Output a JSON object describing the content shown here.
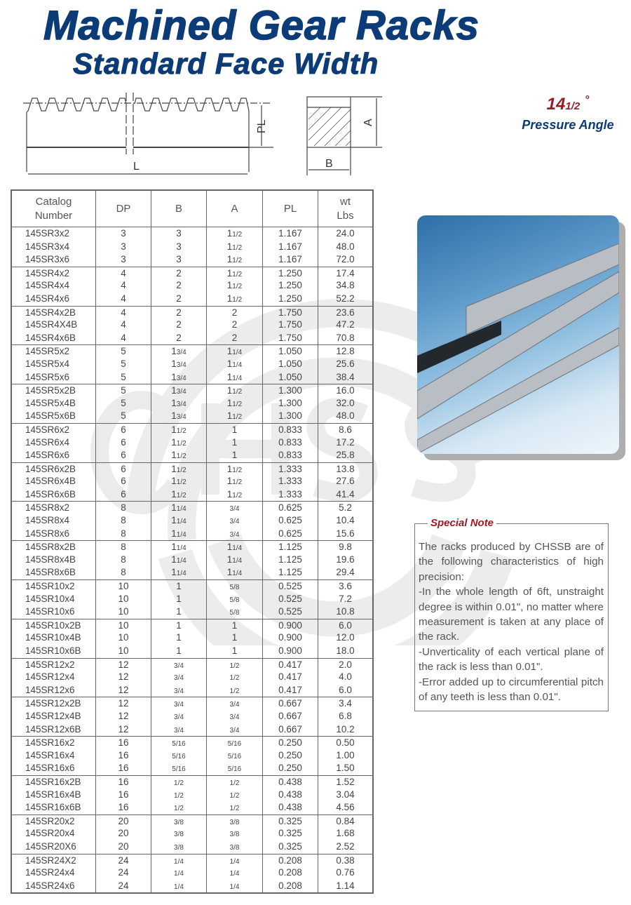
{
  "header": {
    "title": "Machined Gear Racks",
    "subtitle": "Standard Face Width"
  },
  "pressure_angle": {
    "whole": "14",
    "fraction": "1/2",
    "degree": "°",
    "label": "Pressure Angle"
  },
  "diagram": {
    "labels": {
      "length": "L",
      "pitch_line": "PL",
      "height": "A",
      "width": "B"
    }
  },
  "watermark": "CHSSB",
  "colors": {
    "title": "#0c3c78",
    "accent": "#9b1b24"
  },
  "table": {
    "headers": [
      [
        "Catalog",
        "Number"
      ],
      [
        "DP"
      ],
      [
        "B"
      ],
      [
        "A"
      ],
      [
        "PL"
      ],
      [
        "wt",
        "Lbs"
      ]
    ],
    "rows": [
      [
        "145SR3x2",
        "3",
        "3",
        "1 1/2",
        "1.167",
        "24.0"
      ],
      [
        "145SR3x4",
        "3",
        "3",
        "1 1/2",
        "1.167",
        "48.0"
      ],
      [
        "145SR3x6",
        "3",
        "3",
        "1 1/2",
        "1.167",
        "72.0"
      ],
      [
        "145SR4x2",
        "4",
        "2",
        "1 1/2",
        "1.250",
        "17.4"
      ],
      [
        "145SR4x4",
        "4",
        "2",
        "1 1/2",
        "1.250",
        "34.8"
      ],
      [
        "145SR4x6",
        "4",
        "2",
        "1 1/2",
        "1.250",
        "52.2"
      ],
      [
        "145SR4x2B",
        "4",
        "2",
        "2",
        "1.750",
        "23.6"
      ],
      [
        "145SR4X4B",
        "4",
        "2",
        "2",
        "1.750",
        "47.2"
      ],
      [
        "145SR4x6B",
        "4",
        "2",
        "2",
        "1.750",
        "70.8"
      ],
      [
        "145SR5x2",
        "5",
        "1 3/4",
        "1 1/4",
        "1.050",
        "12.8"
      ],
      [
        "145SR5x4",
        "5",
        "1 3/4",
        "1 1/4",
        "1.050",
        "25.6"
      ],
      [
        "145SR5x6",
        "5",
        "1 3/4",
        "1 1/4",
        "1.050",
        "38.4"
      ],
      [
        "145SR5x2B",
        "5",
        "1 3/4",
        "1 1/2",
        "1.300",
        "16.0"
      ],
      [
        "145SR5x4B",
        "5",
        "1 3/4",
        "1 1/2",
        "1.300",
        "32.0"
      ],
      [
        "145SR5x6B",
        "5",
        "1 3/4",
        "1 1/2",
        "1.300",
        "48.0"
      ],
      [
        "145SR6x2",
        "6",
        "1 1/2",
        "1",
        "0.833",
        "8.6"
      ],
      [
        "145SR6x4",
        "6",
        "1 1/2",
        "1",
        "0.833",
        "17.2"
      ],
      [
        "145SR6x6",
        "6",
        "1 1/2",
        "1",
        "0.833",
        "25.8"
      ],
      [
        "145SR6x2B",
        "6",
        "1 1/2",
        "1 1/2",
        "1.333",
        "13.8"
      ],
      [
        "145SR6x4B",
        "6",
        "1 1/2",
        "1 1/2",
        "1.333",
        "27.6"
      ],
      [
        "145SR6x6B",
        "6",
        "1 1/2",
        "1 1/2",
        "1.333",
        "41.4"
      ],
      [
        "145SR8x2",
        "8",
        "1 1/4",
        "3/4",
        "0.625",
        "5.2"
      ],
      [
        "145SR8x4",
        "8",
        "1 1/4",
        "3/4",
        "0.625",
        "10.4"
      ],
      [
        "145SR8x6",
        "8",
        "1 1/4",
        "3/4",
        "0.625",
        "15.6"
      ],
      [
        "145SR8x2B",
        "8",
        "1 1/4",
        "1 1/4",
        "1.125",
        "9.8"
      ],
      [
        "145SR8x4B",
        "8",
        "1 1/4",
        "1 1/4",
        "1.125",
        "19.6"
      ],
      [
        "145SR8x6B",
        "8",
        "1 1/4",
        "1 1/4",
        "1.125",
        "29.4"
      ],
      [
        "145SR10x2",
        "10",
        "1",
        "5/8",
        "0.525",
        "3.6"
      ],
      [
        "145SR10x4",
        "10",
        "1",
        "5/8",
        "0.525",
        "7.2"
      ],
      [
        "145SR10x6",
        "10",
        "1",
        "5/8",
        "0.525",
        "10.8"
      ],
      [
        "145SR10x2B",
        "10",
        "1",
        "1",
        "0.900",
        "6.0"
      ],
      [
        "145SR10x4B",
        "10",
        "1",
        "1",
        "0.900",
        "12.0"
      ],
      [
        "145SR10x6B",
        "10",
        "1",
        "1",
        "0.900",
        "18.0"
      ],
      [
        "145SR12x2",
        "12",
        "3/4",
        "1/2",
        "0.417",
        "2.0"
      ],
      [
        "145SR12x4",
        "12",
        "3/4",
        "1/2",
        "0.417",
        "4.0"
      ],
      [
        "145SR12x6",
        "12",
        "3/4",
        "1/2",
        "0.417",
        "6.0"
      ],
      [
        "145SR12x2B",
        "12",
        "3/4",
        "3/4",
        "0.667",
        "3.4"
      ],
      [
        "145SR12x4B",
        "12",
        "3/4",
        "3/4",
        "0.667",
        "6.8"
      ],
      [
        "145SR12x6B",
        "12",
        "3/4",
        "3/4",
        "0.667",
        "10.2"
      ],
      [
        "145SR16x2",
        "16",
        "5/16",
        "5/16",
        "0.250",
        "0.50"
      ],
      [
        "145SR16x4",
        "16",
        "5/16",
        "5/16",
        "0.250",
        "1.00"
      ],
      [
        "145SR16x6",
        "16",
        "5/16",
        "5/16",
        "0.250",
        "1.50"
      ],
      [
        "145SR16x2B",
        "16",
        "1/2",
        "1/2",
        "0.438",
        "1.52"
      ],
      [
        "145SR16x4B",
        "16",
        "1/2",
        "1/2",
        "0.438",
        "3.04"
      ],
      [
        "145SR16x6B",
        "16",
        "1/2",
        "1/2",
        "0.438",
        "4.56"
      ],
      [
        "145SR20x2",
        "20",
        "3/8",
        "3/8",
        "0.325",
        "0.84"
      ],
      [
        "145SR20x4",
        "20",
        "3/8",
        "3/8",
        "0.325",
        "1.68"
      ],
      [
        "145SR20X6",
        "20",
        "3/8",
        "3/8",
        "0.325",
        "2.52"
      ],
      [
        "145SR24X2",
        "24",
        "1/4",
        "1/4",
        "0.208",
        "0.38"
      ],
      [
        "145SR24x4",
        "24",
        "1/4",
        "1/4",
        "0.208",
        "0.76"
      ],
      [
        "145SR24x6",
        "24",
        "1/4",
        "1/4",
        "0.208",
        "1.14"
      ]
    ]
  },
  "special_note": {
    "title": "Special Note",
    "paragraphs": [
      "The racks produced by CHSSB are of the following characteristics of high precision:",
      "-In the whole length of 6ft, unstraight degree is within 0.01\", no matter where measurement is taken at any place of the rack.",
      "-Unverticality of each vertical plane of the rack is less than 0.01\".",
      "-Error added up to circumferential pitch of any teeth is less than 0.01\"."
    ]
  }
}
